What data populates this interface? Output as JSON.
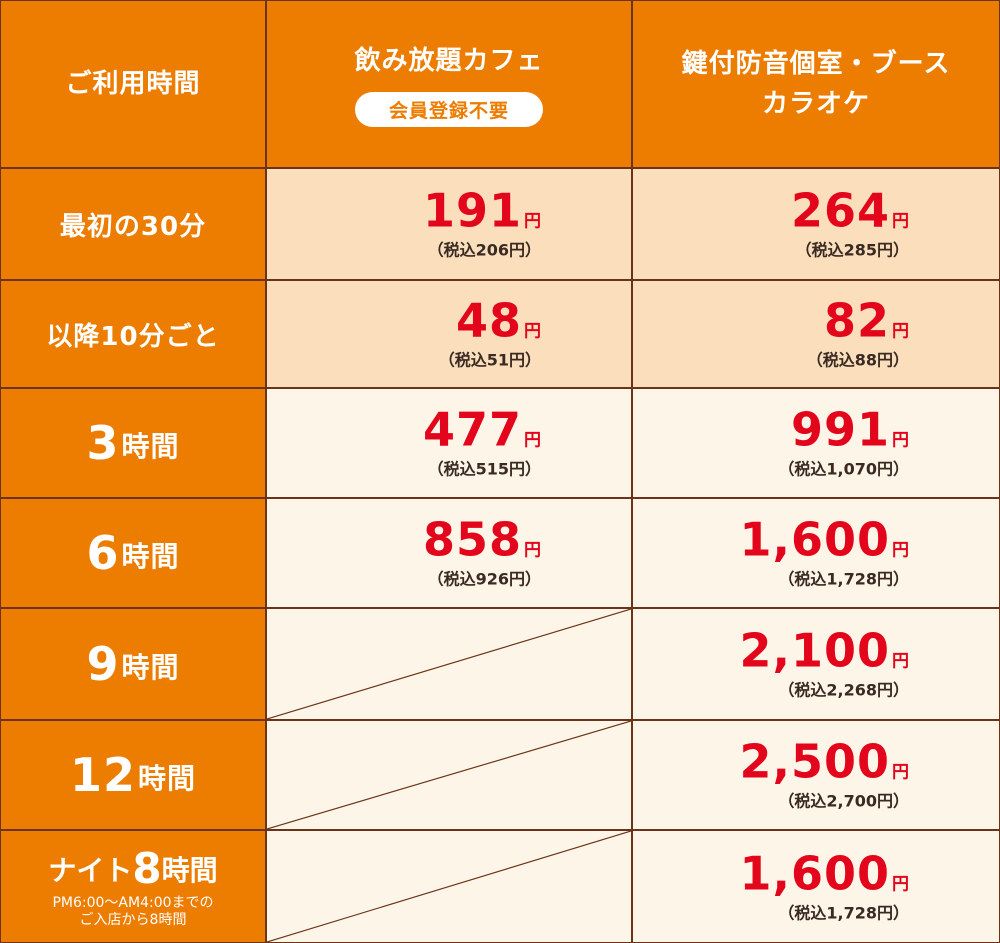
{
  "header": {
    "col_time": "ご利用時間",
    "col_cafe": "飲み放題カフェ",
    "col_cafe_badge": "会員登録不要",
    "col_room_line1": "鍵付防音個室・ブース",
    "col_room_line2": "カラオケ"
  },
  "rows": [
    {
      "label": "最初の30分",
      "cafe_price": "191",
      "cafe_tax": "（税込206円）",
      "room_price": "264",
      "room_tax": "（税込285円）"
    },
    {
      "label": "以降10分ごと",
      "cafe_price": "48",
      "cafe_tax": "（税込51円）",
      "room_price": "82",
      "room_tax": "（税込88円）"
    },
    {
      "label_num": "3",
      "label_unit": "時間",
      "cafe_price": "477",
      "cafe_tax": "（税込515円）",
      "room_price": "991",
      "room_tax": "（税込1,070円）"
    },
    {
      "label_num": "6",
      "label_unit": "時間",
      "cafe_price": "858",
      "cafe_tax": "（税込926円）",
      "room_price": "1,600",
      "room_tax": "（税込1,728円）"
    },
    {
      "label_num": "9",
      "label_unit": "時間",
      "room_price": "2,100",
      "room_tax": "（税込2,268円）"
    },
    {
      "label_num": "12",
      "label_unit": "時間",
      "room_price": "2,500",
      "room_tax": "（税込2,700円）"
    },
    {
      "label_pre": "ナイト",
      "label_num": "8",
      "label_unit": "時間",
      "label_note1": "PM6:00～AM4:00までの",
      "label_note2": "ご入店から8時間",
      "room_price": "1,600",
      "room_tax": "（税込1,728円）"
    }
  ],
  "yen": "円",
  "colors": {
    "orange": "#ed7d00",
    "price_red": "#e3051b",
    "border": "#6b3418",
    "peach": "#fbdfbd",
    "cream": "#fdf5e8"
  }
}
